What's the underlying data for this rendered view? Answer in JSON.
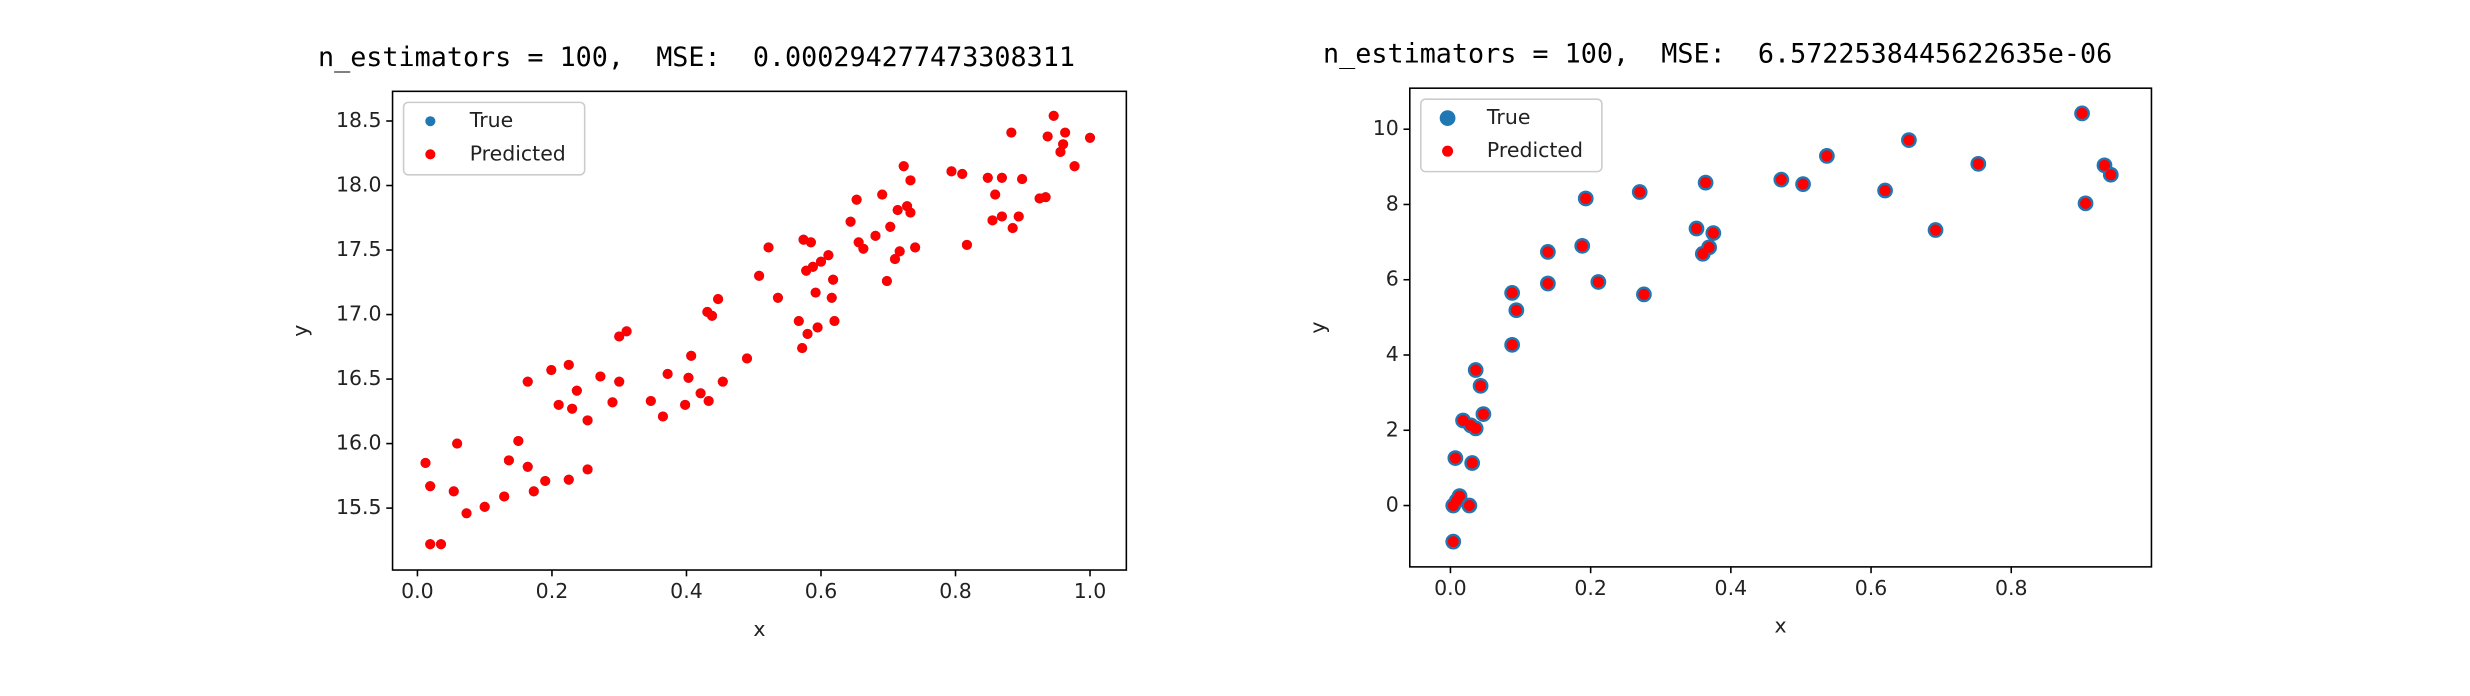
{
  "chart_data": [
    {
      "type": "scatter",
      "title": "n_estimators = 100,  MSE:  0.000294277473308311",
      "x_label": "x",
      "y_label": "y",
      "xlim": [
        -0.037,
        1.054
      ],
      "ylim": [
        15.02,
        18.73
      ],
      "xticks": [
        {
          "value": 0,
          "label": "0.0"
        },
        {
          "value": 0.2,
          "label": "0.2"
        },
        {
          "value": 0.4,
          "label": "0.4"
        },
        {
          "value": 0.6,
          "label": "0.6"
        },
        {
          "value": 0.8,
          "label": "0.8"
        },
        {
          "value": 1,
          "label": "1.0"
        }
      ],
      "yticks": [
        15.5,
        {
          "value": 16,
          "label": "16.0"
        },
        16.5,
        {
          "value": 17,
          "label": "17.0"
        },
        17.5,
        {
          "value": 18,
          "label": "18.0"
        },
        18.5
      ],
      "legend": "upper left",
      "x": [
        0.012,
        0.019,
        0.019,
        0.035,
        0.059,
        0.054,
        0.073,
        0.1,
        0.129,
        0.136,
        0.15,
        0.164,
        0.164,
        0.173,
        0.19,
        0.199,
        0.21,
        0.225,
        0.225,
        0.23,
        0.237,
        0.253,
        0.253,
        0.272,
        0.29,
        0.3,
        0.3,
        0.311,
        0.347,
        0.365,
        0.372,
        0.398,
        0.403,
        0.407,
        0.421,
        0.431,
        0.433,
        0.438,
        0.447,
        0.454,
        0.49,
        0.508,
        0.522,
        0.536,
        0.567,
        0.572,
        0.574,
        0.58,
        0.578,
        0.585,
        0.588,
        0.592,
        0.595,
        0.6,
        0.611,
        0.616,
        0.618,
        0.62,
        0.644,
        0.653,
        0.656,
        0.663,
        0.681,
        0.691,
        0.698,
        0.703,
        0.71,
        0.714,
        0.717,
        0.723,
        0.728,
        0.733,
        0.733,
        0.74,
        0.794,
        0.81,
        0.817,
        0.848,
        0.855,
        0.859,
        0.869,
        0.869,
        0.883,
        0.885,
        0.894,
        0.899,
        0.925,
        0.934,
        0.937,
        0.946,
        0.956,
        0.963,
        0.96,
        0.977,
        1.0
      ],
      "series": [
        {
          "name": "True",
          "color": "#1f77b4",
          "values": [
            15.85,
            15.67,
            15.22,
            15.22,
            16.0,
            15.63,
            15.46,
            15.51,
            15.59,
            15.87,
            16.02,
            15.82,
            16.48,
            15.63,
            15.71,
            16.57,
            16.3,
            16.61,
            15.72,
            16.27,
            16.41,
            16.18,
            15.8,
            16.52,
            16.32,
            16.48,
            16.83,
            16.87,
            16.33,
            16.21,
            16.54,
            16.3,
            16.51,
            16.68,
            16.39,
            17.02,
            16.33,
            16.99,
            17.12,
            16.48,
            16.66,
            17.3,
            17.52,
            17.13,
            16.95,
            16.74,
            17.58,
            16.85,
            17.34,
            17.56,
            17.37,
            17.17,
            16.9,
            17.41,
            17.46,
            17.13,
            17.27,
            16.95,
            17.72,
            17.89,
            17.56,
            17.51,
            17.61,
            17.93,
            17.26,
            17.68,
            17.43,
            17.81,
            17.49,
            18.15,
            17.84,
            18.04,
            17.79,
            17.52,
            18.11,
            18.09,
            17.54,
            18.06,
            17.73,
            17.93,
            18.06,
            17.76,
            18.41,
            17.67,
            17.76,
            18.05,
            17.9,
            17.91,
            18.38,
            18.54,
            18.26,
            18.41,
            18.32,
            18.15,
            18.37
          ]
        },
        {
          "name": "Predicted",
          "color": "#ff0000",
          "values": [
            15.85,
            15.67,
            15.22,
            15.22,
            16.0,
            15.63,
            15.46,
            15.51,
            15.59,
            15.87,
            16.02,
            15.82,
            16.48,
            15.63,
            15.71,
            16.57,
            16.3,
            16.61,
            15.72,
            16.27,
            16.41,
            16.18,
            15.8,
            16.52,
            16.32,
            16.48,
            16.83,
            16.87,
            16.33,
            16.21,
            16.54,
            16.3,
            16.51,
            16.68,
            16.39,
            17.02,
            16.33,
            16.99,
            17.12,
            16.48,
            16.66,
            17.3,
            17.52,
            17.13,
            16.95,
            16.74,
            17.58,
            16.85,
            17.34,
            17.56,
            17.37,
            17.17,
            16.9,
            17.41,
            17.46,
            17.13,
            17.27,
            16.95,
            17.72,
            17.89,
            17.56,
            17.51,
            17.61,
            17.93,
            17.26,
            17.68,
            17.43,
            17.81,
            17.49,
            18.15,
            17.84,
            18.04,
            17.79,
            17.52,
            18.11,
            18.09,
            17.54,
            18.06,
            17.73,
            17.93,
            18.06,
            17.76,
            18.41,
            17.67,
            17.76,
            18.05,
            17.9,
            17.91,
            18.38,
            18.54,
            18.26,
            18.41,
            18.32,
            18.15,
            18.37
          ]
        }
      ]
    },
    {
      "type": "scatter",
      "title": "n_estimators = 100,  MSE:  6.5722538445622635e-06",
      "x_label": "x",
      "y_label": "y",
      "xlim": [
        -0.058,
        1.0
      ],
      "ylim": [
        -1.63,
        11.09
      ],
      "xticks": [
        {
          "value": 0,
          "label": "0.0"
        },
        {
          "value": 0.2,
          "label": "0.2"
        },
        {
          "value": 0.4,
          "label": "0.4"
        },
        {
          "value": 0.6,
          "label": "0.6"
        },
        {
          "value": 0.8,
          "label": "0.8"
        }
      ],
      "yticks": [
        0,
        2,
        4,
        6,
        8,
        10
      ],
      "legend": "upper left",
      "x": [
        0.004,
        0.004,
        0.009,
        0.007,
        0.013,
        0.018,
        0.027,
        0.029,
        0.031,
        0.036,
        0.036,
        0.043,
        0.047,
        0.088,
        0.088,
        0.094,
        0.139,
        0.139,
        0.188,
        0.193,
        0.211,
        0.27,
        0.276,
        0.351,
        0.36,
        0.364,
        0.369,
        0.375,
        0.472,
        0.503,
        0.537,
        0.62,
        0.654,
        0.692,
        0.753,
        0.901,
        0.906,
        0.933,
        0.942
      ],
      "series": [
        {
          "name": "True",
          "color": "#1f77b4",
          "values": [
            -0.96,
            0.0,
            0.13,
            1.26,
            0.25,
            2.26,
            0.0,
            2.13,
            1.13,
            2.05,
            3.6,
            3.18,
            2.43,
            4.27,
            5.65,
            5.19,
            5.9,
            6.74,
            6.9,
            8.16,
            5.94,
            8.33,
            5.61,
            7.36,
            6.69,
            8.58,
            6.86,
            7.24,
            8.66,
            8.54,
            9.29,
            8.37,
            9.71,
            7.32,
            9.08,
            10.42,
            8.03,
            9.04,
            8.79
          ]
        },
        {
          "name": "Predicted",
          "color": "#ff0000",
          "values": [
            -0.96,
            0.0,
            0.13,
            1.26,
            0.25,
            2.26,
            0.0,
            2.13,
            1.13,
            2.05,
            3.6,
            3.18,
            2.43,
            4.27,
            5.65,
            5.19,
            5.9,
            6.74,
            6.9,
            8.16,
            5.94,
            8.33,
            5.61,
            7.36,
            6.69,
            8.58,
            6.86,
            7.24,
            8.66,
            8.54,
            9.29,
            8.37,
            9.71,
            7.32,
            9.08,
            10.42,
            8.03,
            9.04,
            8.79
          ]
        }
      ]
    }
  ]
}
